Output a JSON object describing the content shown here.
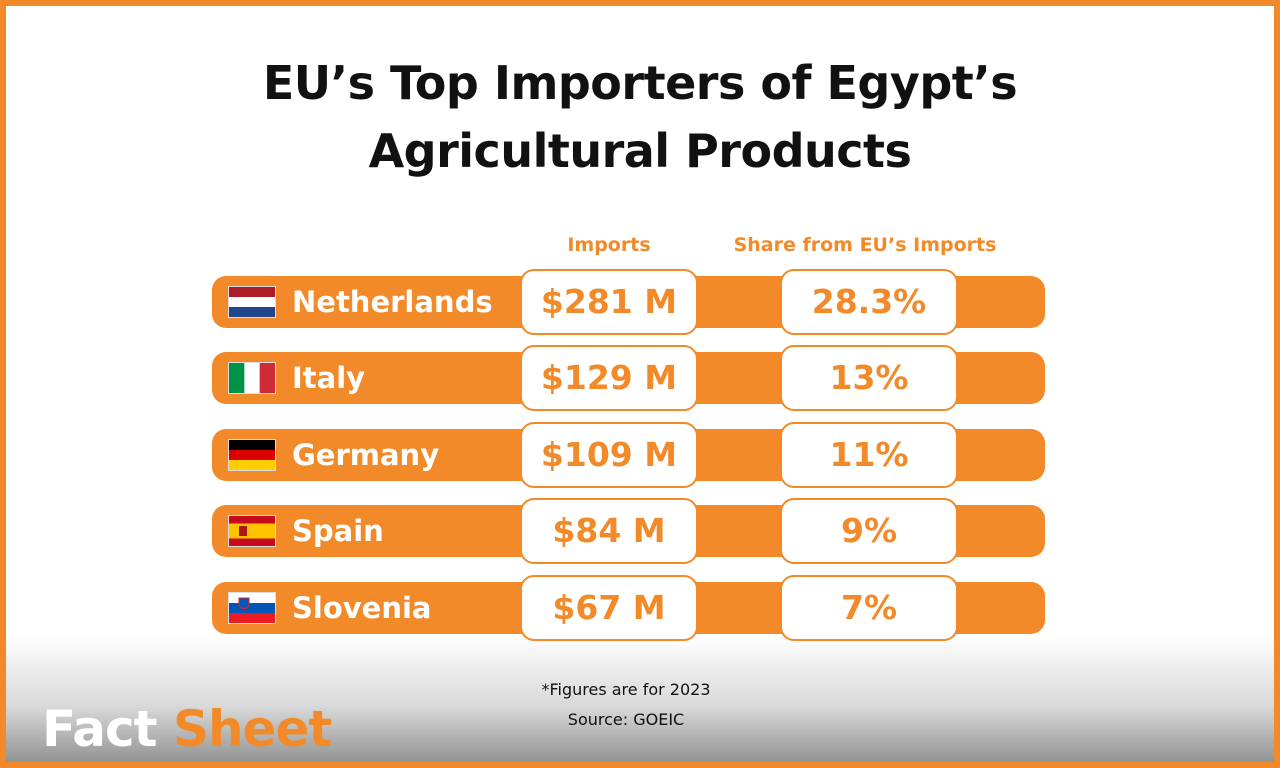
{
  "title_lines": [
    "EU’s Top Importers of Egypt’s",
    "Agricultural Products"
  ],
  "table": {
    "headers": [
      "Imports",
      "Share from EU’s Imports"
    ],
    "rows": [
      [
        "Netherlands",
        "$281 M",
        "28.3%"
      ],
      [
        "Italy",
        "$129 M",
        "13%"
      ],
      [
        "Germany",
        "$109 M",
        "11%"
      ],
      [
        "Spain",
        "$84 M",
        "9%"
      ],
      [
        "Slovenia",
        "$67 M",
        "7%"
      ]
    ]
  },
  "footnote": "*Figures are for 2023",
  "source": "Source: GOEIC",
  "brand": [
    "Fact",
    "Sheet"
  ]
}
